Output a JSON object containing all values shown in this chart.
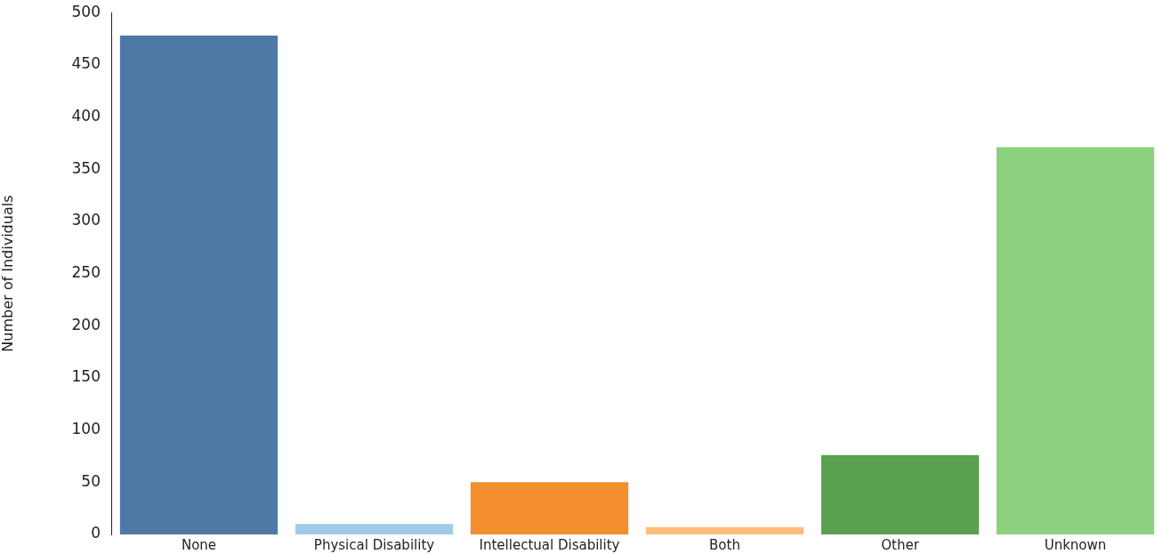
{
  "chart_data": {
    "type": "bar",
    "ylabel": "Number of Individuals",
    "categories": [
      "None",
      "Physical Disability",
      "Intellectual Disability",
      "Both",
      "Other",
      "Unknown"
    ],
    "values": [
      478,
      10,
      50,
      7,
      76,
      371
    ],
    "colors": [
      "#4e79a7",
      "#a0cbe8",
      "#f28e2b",
      "#ffbe7d",
      "#59a14f",
      "#8cd17d"
    ],
    "ylim": [
      0,
      500
    ],
    "yticks": [
      0,
      50,
      100,
      150,
      200,
      250,
      300,
      350,
      400,
      450,
      500
    ],
    "grid": false,
    "legend": false
  }
}
